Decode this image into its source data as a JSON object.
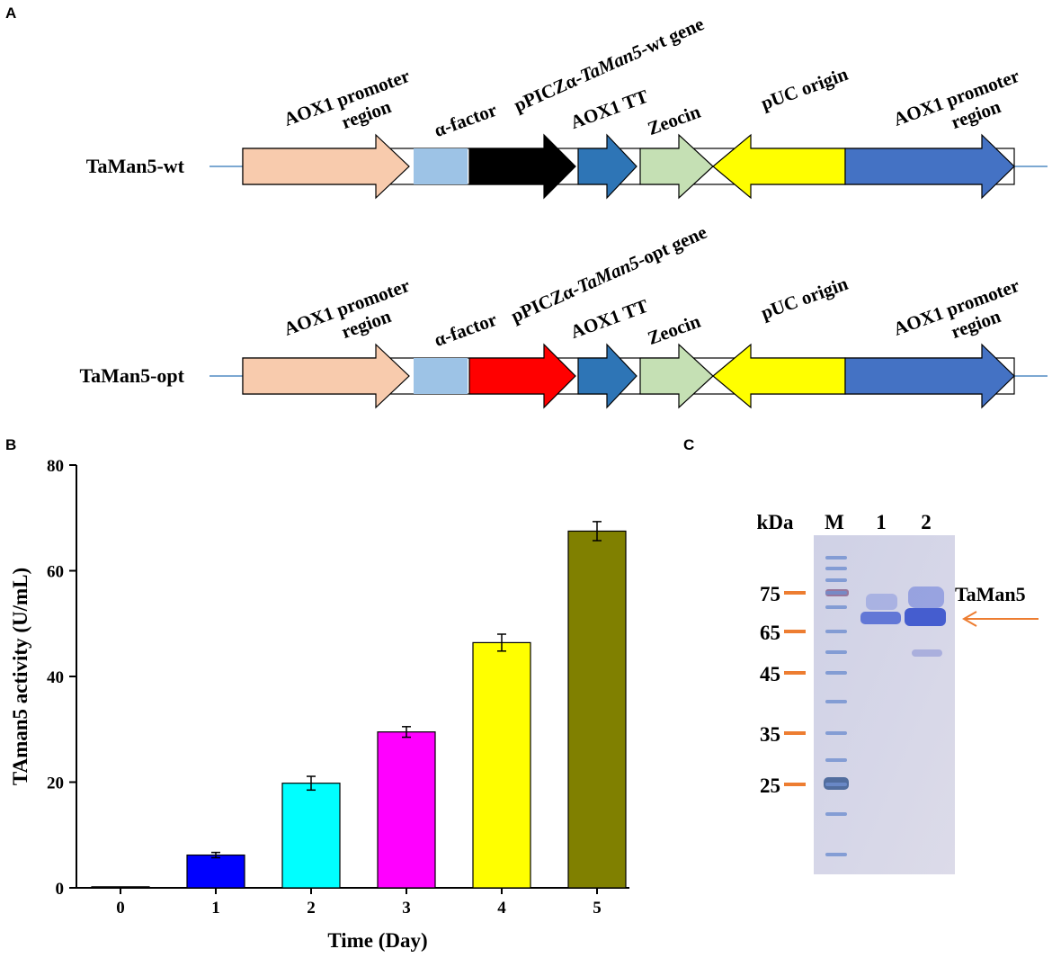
{
  "panels": [
    "A",
    "B",
    "C"
  ],
  "constructs": [
    {
      "name": "TaMan5-wt",
      "segments": [
        {
          "label": [
            "AOX1 promoter",
            "region"
          ],
          "color": "#f8cbad"
        },
        {
          "label": [
            "α-factor"
          ],
          "color": "#9dc3e6"
        },
        {
          "label": [
            "pPICZα-",
            "TaMan5",
            "-wt gene"
          ],
          "color": "#000000"
        },
        {
          "label": [
            "AOX1 TT"
          ],
          "color": "#2e75b6"
        },
        {
          "label": [
            "Zeocin"
          ],
          "color": "#c5e0b4"
        },
        {
          "label": [
            "pUC  origin"
          ],
          "color": "#ffff00"
        },
        {
          "label": [
            "AOX1 promoter",
            "region"
          ],
          "color": "#4472c4"
        }
      ]
    },
    {
      "name": "TaMan5-opt",
      "segments": [
        {
          "label": [
            "AOX1 promoter",
            "region"
          ],
          "color": "#f8cbad"
        },
        {
          "label": [
            "α-factor"
          ],
          "color": "#9dc3e6"
        },
        {
          "label": [
            "pPICZα-",
            "TaMan5",
            "-opt  gene"
          ],
          "color": "#ff0000"
        },
        {
          "label": [
            "AOX1 TT"
          ],
          "color": "#2e75b6"
        },
        {
          "label": [
            "Zeocin"
          ],
          "color": "#c5e0b4"
        },
        {
          "label": [
            "pUC  origin"
          ],
          "color": "#ffff00"
        },
        {
          "label": [
            "AOX1 promoter",
            "region"
          ],
          "color": "#4472c4"
        }
      ]
    }
  ],
  "chart_data": {
    "type": "bar",
    "xlabel": "Time (Day)",
    "ylabel": "TAman5 activity (U/mL)",
    "categories": [
      "0",
      "1",
      "2",
      "3",
      "4",
      "5"
    ],
    "values": [
      0.2,
      6.2,
      19.8,
      29.5,
      46.4,
      67.5
    ],
    "errors": [
      0,
      0.5,
      1.3,
      1.0,
      1.6,
      1.8
    ],
    "colors": [
      "#ffffff",
      "#0000ff",
      "#00ffff",
      "#ff00ff",
      "#ffff00",
      "#808000"
    ],
    "ylim": [
      0,
      80
    ],
    "yticks": [
      0,
      20,
      40,
      60,
      80
    ]
  },
  "gel": {
    "unit": "kDa",
    "lanes": [
      "M",
      "1",
      "2"
    ],
    "markers": [
      75,
      65,
      45,
      35,
      25
    ],
    "band_label": "TaMan5"
  }
}
